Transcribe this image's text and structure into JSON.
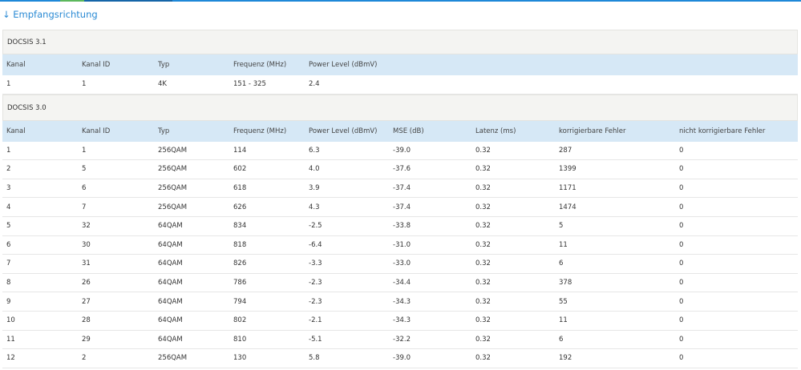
{
  "header": {
    "title": "↓ Empfangsrichtung"
  },
  "sections": [
    {
      "title": "DOCSIS 3.1",
      "columns": [
        "Kanal",
        "Kanal ID",
        "Typ",
        "Frequenz (MHz)",
        "Power Level (dBmV)"
      ],
      "rows": [
        [
          "1",
          "1",
          "4K",
          "151 - 325",
          "2.4"
        ]
      ]
    },
    {
      "title": "DOCSIS 3.0",
      "columns": [
        "Kanal",
        "Kanal ID",
        "Typ",
        "Frequenz (MHz)",
        "Power Level (dBmV)",
        "MSE (dB)",
        "Latenz (ms)",
        "korrigierbare Fehler",
        "nicht korrigierbare Fehler"
      ],
      "rows": [
        [
          "1",
          "1",
          "256QAM",
          "114",
          "6.3",
          "-39.0",
          "0.32",
          "287",
          "0"
        ],
        [
          "2",
          "5",
          "256QAM",
          "602",
          "4.0",
          "-37.6",
          "0.32",
          "1399",
          "0"
        ],
        [
          "3",
          "6",
          "256QAM",
          "618",
          "3.9",
          "-37.4",
          "0.32",
          "1171",
          "0"
        ],
        [
          "4",
          "7",
          "256QAM",
          "626",
          "4.3",
          "-37.4",
          "0.32",
          "1474",
          "0"
        ],
        [
          "5",
          "32",
          "64QAM",
          "834",
          "-2.5",
          "-33.8",
          "0.32",
          "5",
          "0"
        ],
        [
          "6",
          "30",
          "64QAM",
          "818",
          "-6.4",
          "-31.0",
          "0.32",
          "11",
          "0"
        ],
        [
          "7",
          "31",
          "64QAM",
          "826",
          "-3.3",
          "-33.0",
          "0.32",
          "6",
          "0"
        ],
        [
          "8",
          "26",
          "64QAM",
          "786",
          "-2.3",
          "-34.4",
          "0.32",
          "378",
          "0"
        ],
        [
          "9",
          "27",
          "64QAM",
          "794",
          "-2.3",
          "-34.3",
          "0.32",
          "55",
          "0"
        ],
        [
          "10",
          "28",
          "64QAM",
          "802",
          "-2.1",
          "-34.3",
          "0.32",
          "11",
          "0"
        ],
        [
          "11",
          "29",
          "64QAM",
          "810",
          "-5.1",
          "-32.2",
          "0.32",
          "6",
          "0"
        ],
        [
          "12",
          "2",
          "256QAM",
          "130",
          "5.8",
          "-39.0",
          "0.32",
          "192",
          "0"
        ]
      ]
    }
  ]
}
